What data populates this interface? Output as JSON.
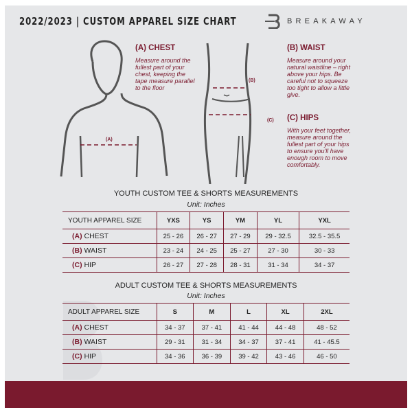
{
  "header": {
    "title": "2022/2023  |  CUSTOM APPAREL SIZE CHART",
    "brand": "BREAKAWAY"
  },
  "guide": {
    "chest": {
      "title": "(A) CHEST",
      "text": "Measure around the fullest part of your chest, keeping the tape measure parallel to the floor",
      "marker": "(A)"
    },
    "waist": {
      "title": "(B) WAIST",
      "text": "Measure around your natural waistline – right above your hips. Be careful not to squeeze too tight to allow a little give.",
      "marker": "(B)"
    },
    "hips": {
      "title": "(C) HIPS",
      "text": "With your feet together, measure around the fullest part of your hips to ensure you'll have enough room to move comfortably.",
      "marker": "(C)"
    }
  },
  "youth": {
    "title": "YOUTH CUSTOM TEE & SHORTS MEASUREMENTS",
    "unit": "Unit: Inches",
    "label": "YOUTH APPAREL SIZE",
    "sizes": [
      "YXS",
      "YS",
      "YM",
      "YL",
      "YXL"
    ],
    "rows": [
      {
        "code": "(A)",
        "name": "CHEST",
        "values": [
          "25 - 26",
          "26 - 27",
          "27 - 29",
          "29 - 32.5",
          "32.5 - 35.5"
        ]
      },
      {
        "code": "(B)",
        "name": "WAIST",
        "values": [
          "23 - 24",
          "24 - 25",
          "25 - 27",
          "27 - 30",
          "30 - 33"
        ]
      },
      {
        "code": "(C)",
        "name": "HIP",
        "values": [
          "26 - 27",
          "27 - 28",
          "28 - 31",
          "31 - 34",
          "34 - 37"
        ]
      }
    ]
  },
  "adult": {
    "title": "ADULT CUSTOM TEE & SHORTS MEASUREMENTS",
    "unit": "Unit: Inches",
    "label": "ADULT APPAREL SIZE",
    "sizes": [
      "S",
      "M",
      "L",
      "XL",
      "2XL"
    ],
    "rows": [
      {
        "code": "(A)",
        "name": "CHEST",
        "values": [
          "34 - 37",
          "37 - 41",
          "41 - 44",
          "44 - 48",
          "48 - 52"
        ]
      },
      {
        "code": "(B)",
        "name": "WAIST",
        "values": [
          "29 - 31",
          "31 - 34",
          "34 - 37",
          "37 - 41",
          "41 - 45.5"
        ]
      },
      {
        "code": "(C)",
        "name": "HIP",
        "values": [
          "34 - 36",
          "36 - 39",
          "39 - 42",
          "43 - 46",
          "46 - 50"
        ]
      }
    ]
  },
  "colors": {
    "accent": "#7a1a2e",
    "background": "#e6e7e9"
  }
}
